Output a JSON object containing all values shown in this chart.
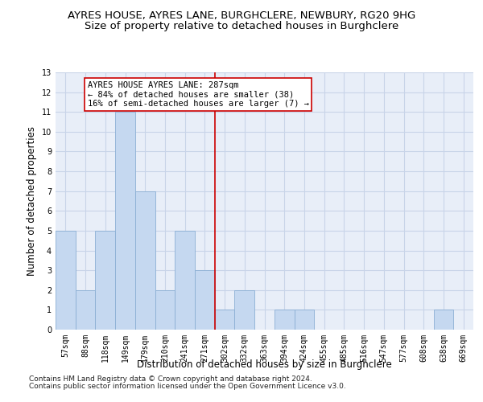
{
  "title": "AYRES HOUSE, AYRES LANE, BURGHCLERE, NEWBURY, RG20 9HG",
  "subtitle": "Size of property relative to detached houses in Burghclere",
  "xlabel": "Distribution of detached houses by size in Burghclere",
  "ylabel": "Number of detached properties",
  "categories": [
    "57sqm",
    "88sqm",
    "118sqm",
    "149sqm",
    "179sqm",
    "210sqm",
    "241sqm",
    "271sqm",
    "302sqm",
    "332sqm",
    "363sqm",
    "394sqm",
    "424sqm",
    "455sqm",
    "485sqm",
    "516sqm",
    "547sqm",
    "577sqm",
    "608sqm",
    "638sqm",
    "669sqm"
  ],
  "values": [
    5,
    2,
    5,
    11,
    7,
    2,
    5,
    3,
    1,
    2,
    0,
    1,
    1,
    0,
    0,
    0,
    0,
    0,
    0,
    1,
    0
  ],
  "bar_color": "#c5d8f0",
  "bar_edge_color": "#8bafd4",
  "vline_x": 7.5,
  "vline_color": "#cc0000",
  "annotation_text": "AYRES HOUSE AYRES LANE: 287sqm\n← 84% of detached houses are smaller (38)\n16% of semi-detached houses are larger (7) →",
  "ylim": [
    0,
    13
  ],
  "yticks": [
    0,
    1,
    2,
    3,
    4,
    5,
    6,
    7,
    8,
    9,
    10,
    11,
    12,
    13
  ],
  "grid_color": "#c8d4e8",
  "background_color": "#e8eef8",
  "footer_line1": "Contains HM Land Registry data © Crown copyright and database right 2024.",
  "footer_line2": "Contains public sector information licensed under the Open Government Licence v3.0.",
  "title_fontsize": 9.5,
  "subtitle_fontsize": 9.5,
  "tick_fontsize": 7,
  "ylabel_fontsize": 8.5,
  "xlabel_fontsize": 8.5,
  "annotation_fontsize": 7.5,
  "footer_fontsize": 6.5
}
